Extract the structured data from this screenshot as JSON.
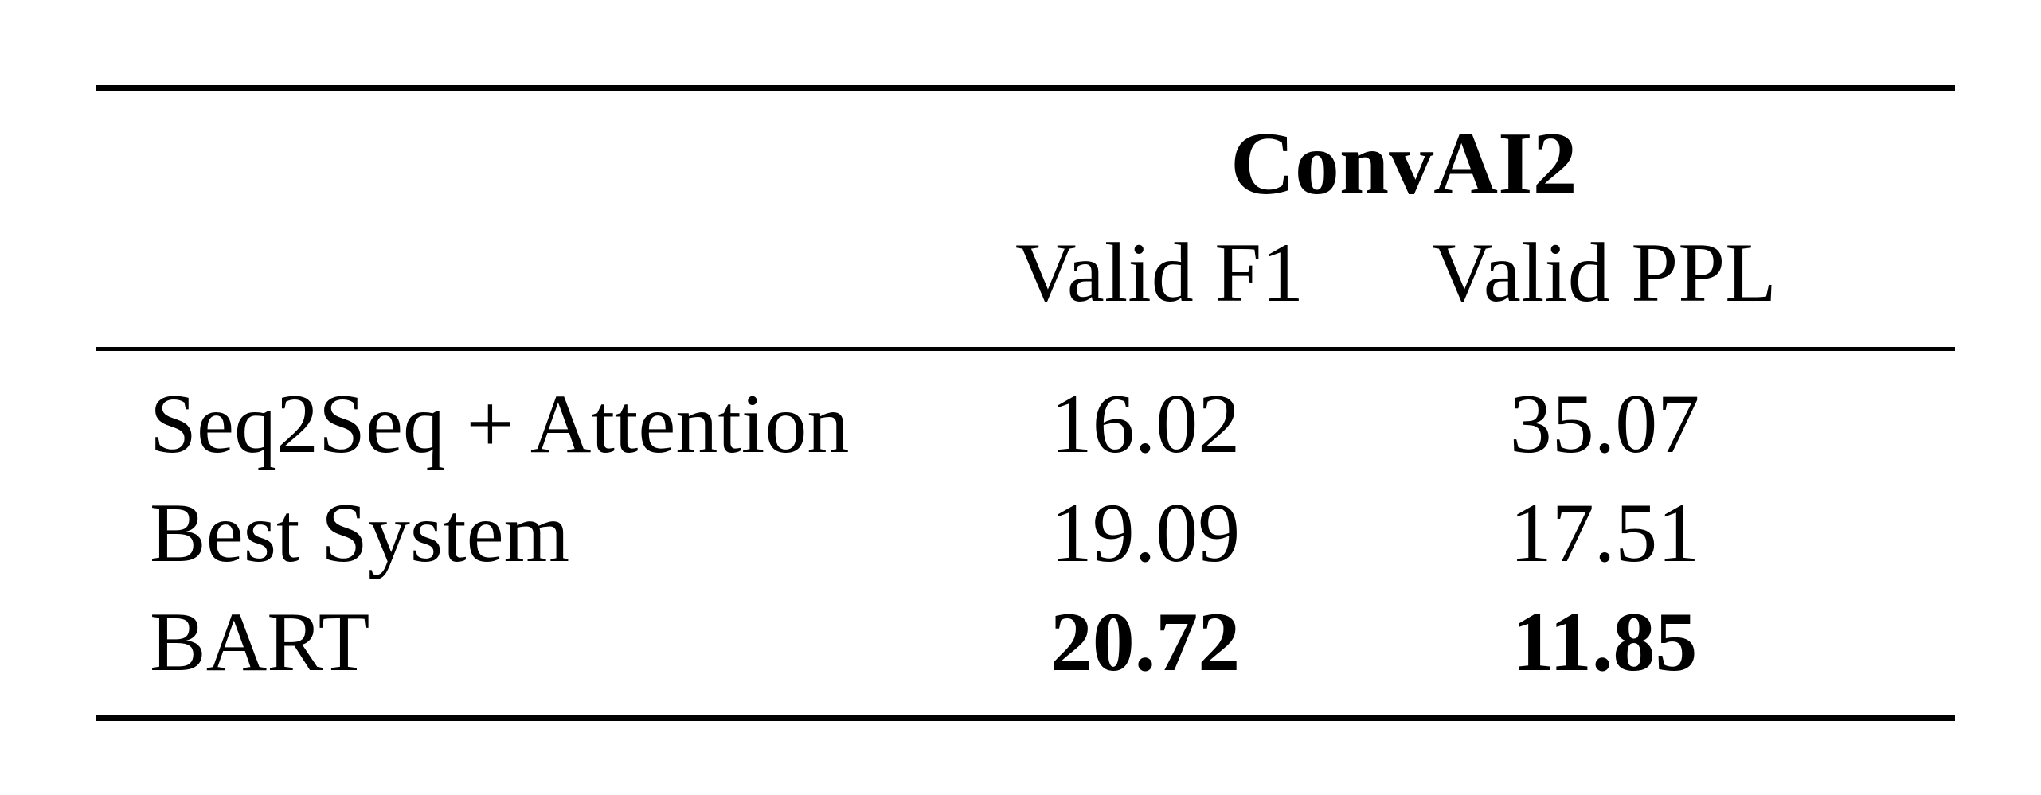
{
  "table": {
    "group_header": "ConvAI2",
    "columns": [
      "Valid F1",
      "Valid PPL"
    ],
    "rows": [
      {
        "label": "Seq2Seq + Attention",
        "valid_f1": "16.02",
        "valid_ppl": "35.07",
        "bold": false
      },
      {
        "label": "Best System",
        "valid_f1": "19.09",
        "valid_ppl": "17.51",
        "bold": false
      },
      {
        "label": "BART",
        "valid_f1": "20.72",
        "valid_ppl": "11.85",
        "bold": true
      }
    ]
  }
}
